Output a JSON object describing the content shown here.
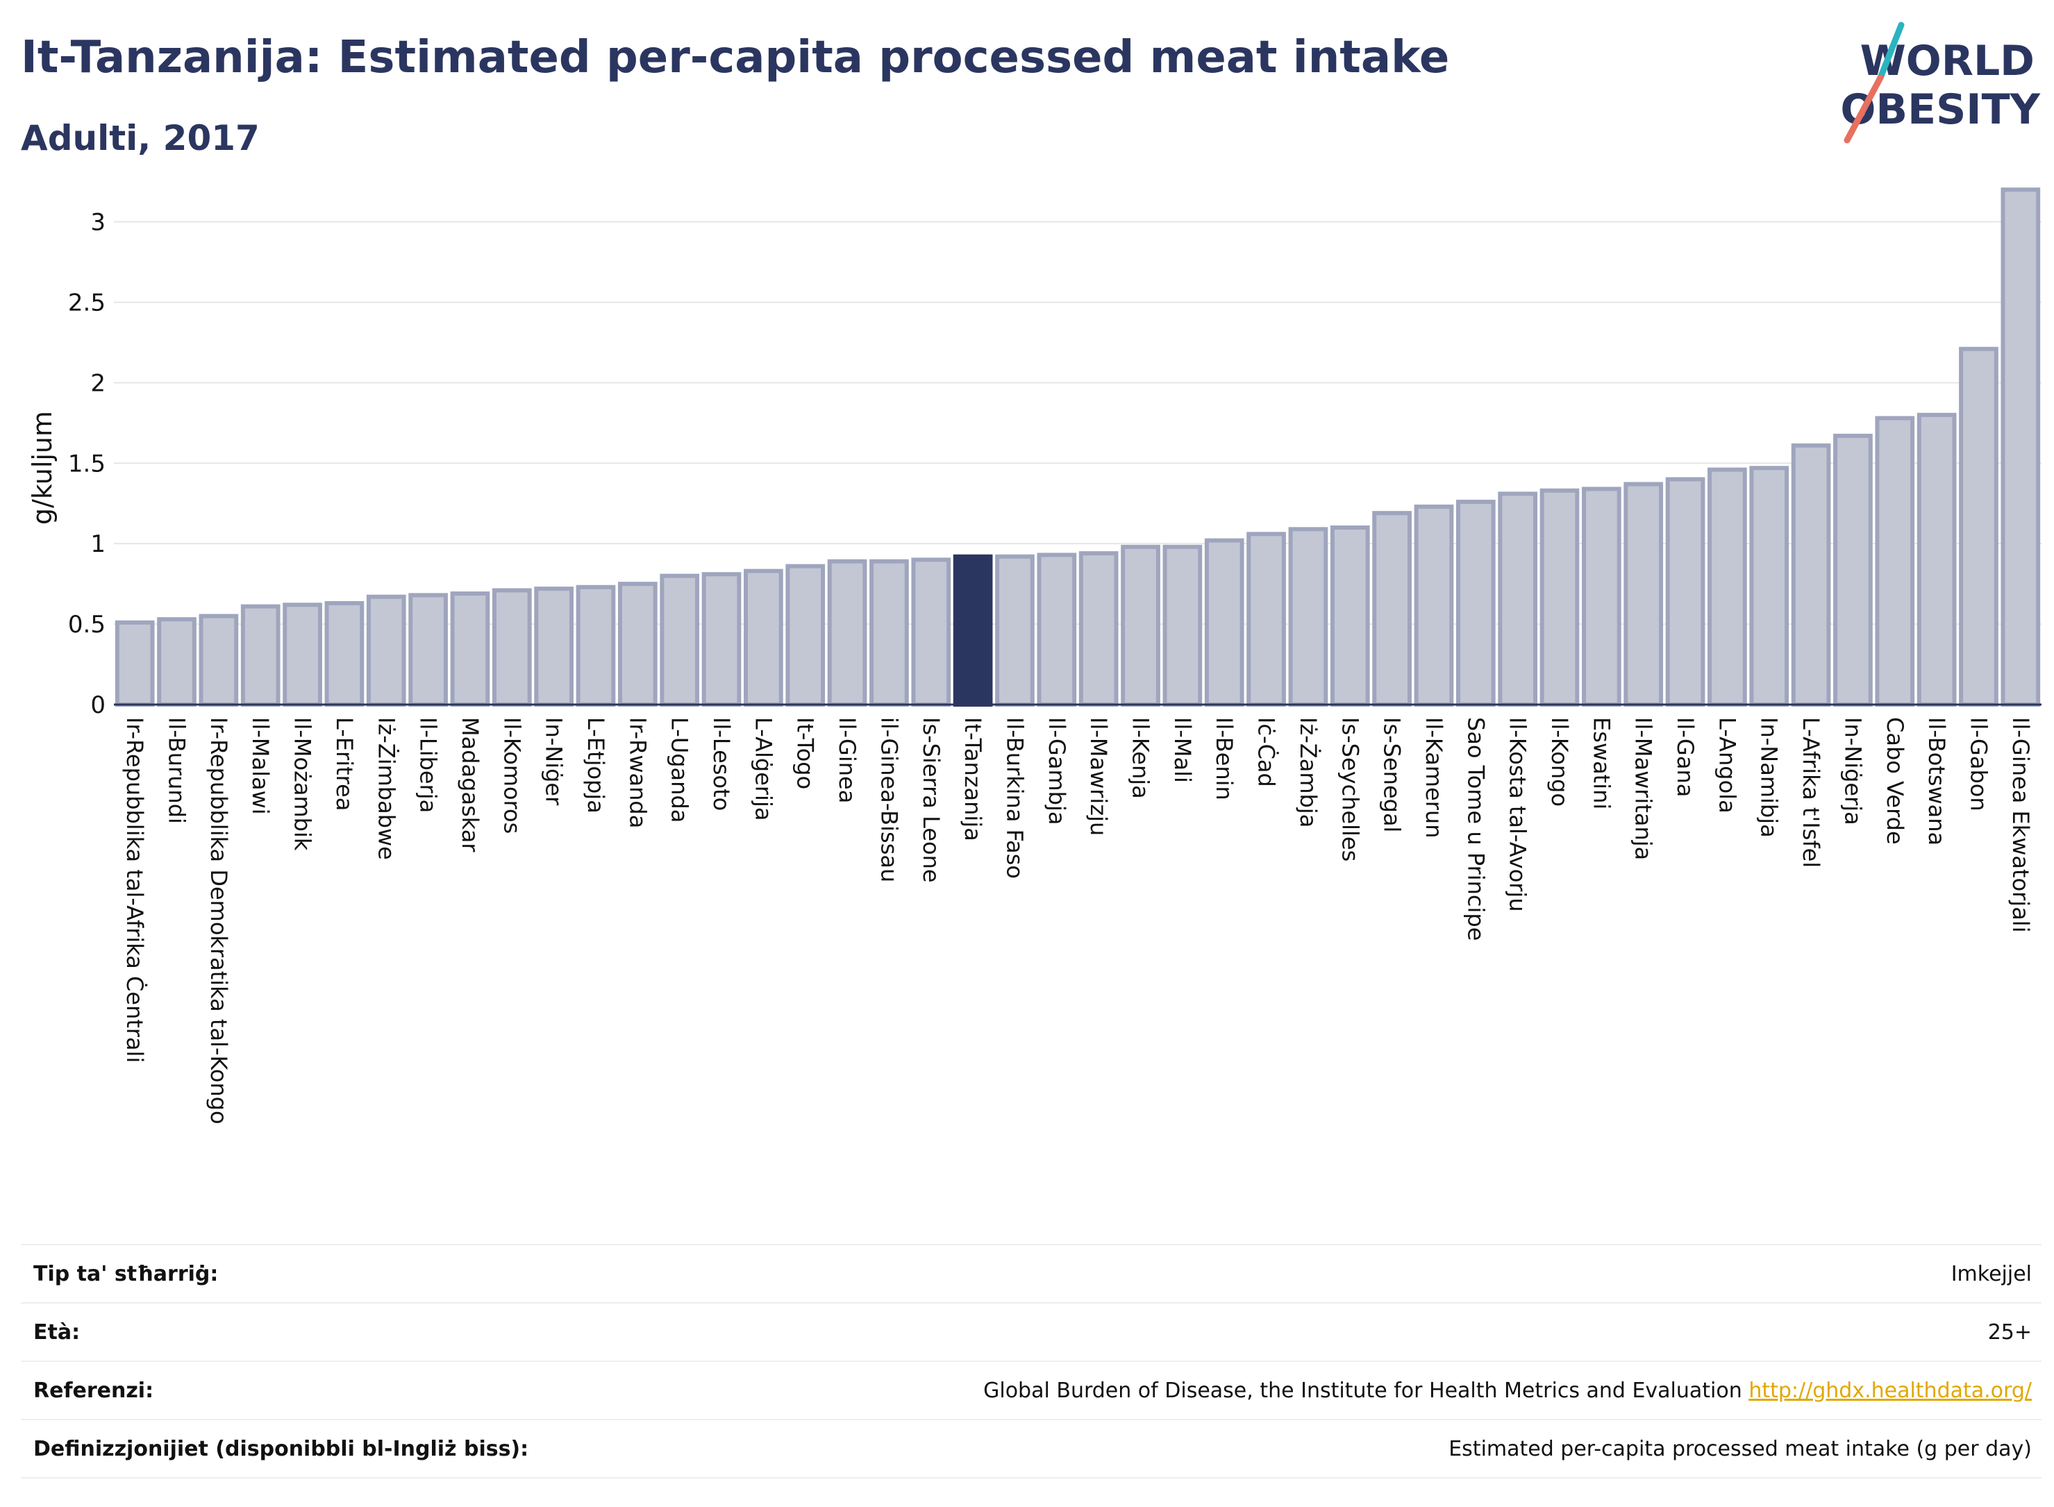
{
  "header": {
    "title": "It-Tanzanija: Estimated per-capita processed meat intake",
    "subtitle": "Adulti, 2017"
  },
  "logo": {
    "line1": "WORLD",
    "line2": "OBESITY",
    "colors": {
      "text": "#2b3660",
      "slash_teal": "#2bb3c0",
      "slash_coral": "#e8705f"
    }
  },
  "chart_data": {
    "type": "bar",
    "ylabel": "g/kuljum",
    "ylim": [
      0,
      3.3
    ],
    "yticks": [
      0,
      0.5,
      1,
      1.5,
      2,
      2.5,
      3
    ],
    "ytick_labels": [
      "0",
      "0.5",
      "1",
      "1.5",
      "2",
      "2.5",
      "3"
    ],
    "grid": true,
    "highlight": "It-Tanzanija",
    "colors": {
      "bar": "#c3c7d4",
      "bar_border": "#9fa5bd",
      "highlight": "#2b3660",
      "grid": "#e6e6e6",
      "axis": "#2b3660"
    },
    "categories": [
      "Ir-Repubblika tal-Afrika Ċentrali",
      "Il-Burundi",
      "Ir-Repubblika Demokratika tal-Kongo",
      "Il-Malawi",
      "Il-Możambik",
      "L-Eritrea",
      "Iż-Żimbabwe",
      "Il-Liberja",
      "Madagaskar",
      "Il-Komoros",
      "In-Niġer",
      "L-Etjopja",
      "Ir-Rwanda",
      "L-Uganda",
      "Il-Lesoto",
      "L-Alġerija",
      "It-Togo",
      "Il-Ginea",
      "il-Ginea-Bissau",
      "Is-Sierra Leone",
      "It-Tanzanija",
      "Il-Burkina Faso",
      "Il-Gambja",
      "Il-Mawrizju",
      "Il-Kenja",
      "Il-Mali",
      "Il-Benin",
      "Iċ-Ċad",
      "Iż-Żambja",
      "Is-Seychelles",
      "Is-Senegal",
      "Il-Kamerun",
      "Sao Tome u Principe",
      "Il-Kosta tal-Avorju",
      "Il-Kongo",
      "Eswatini",
      "Il-Mawritanja",
      "Il-Gana",
      "L-Angola",
      "In-Namibja",
      "L-Afrika t'Isfel",
      "In-Niġerja",
      "Cabo Verde",
      "Il-Botswana",
      "Il-Gabon",
      "Il-Ginea Ekwatorjali"
    ],
    "values": [
      0.51,
      0.53,
      0.55,
      0.61,
      0.62,
      0.63,
      0.67,
      0.68,
      0.69,
      0.71,
      0.72,
      0.73,
      0.75,
      0.8,
      0.81,
      0.83,
      0.86,
      0.89,
      0.89,
      0.9,
      0.92,
      0.92,
      0.93,
      0.94,
      0.98,
      0.98,
      1.02,
      1.06,
      1.09,
      1.1,
      1.19,
      1.23,
      1.26,
      1.31,
      1.33,
      1.34,
      1.37,
      1.4,
      1.46,
      1.47,
      1.61,
      1.67,
      1.78,
      1.8,
      2.21,
      3.2
    ]
  },
  "info_table": [
    {
      "label": "Tip ta' stħarriġ:",
      "value": "Imkejjel",
      "link": ""
    },
    {
      "label": "Età:",
      "value": "25+",
      "link": ""
    },
    {
      "label": "Referenzi:",
      "value": "Global Burden of Disease, the Institute for Health Metrics and Evaluation",
      "link": "http://ghdx.healthdata.org/"
    },
    {
      "label": "Definizzjonijiet (disponibbli bl-Ingliż biss):",
      "value": "Estimated per-capita processed meat intake (g per day)",
      "link": ""
    }
  ]
}
